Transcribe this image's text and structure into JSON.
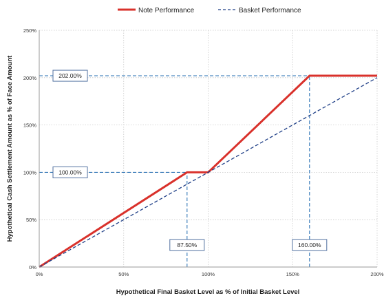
{
  "chart_data": {
    "type": "line",
    "xlabel": "Hypothetical Final Basket Level as % of Initial Basket Level",
    "ylabel": "Hypothetical Cash Settlement Amount as % of Face Amount",
    "xlim": [
      0,
      200
    ],
    "ylim": [
      0,
      250
    ],
    "x_ticks": [
      "0%",
      "50%",
      "100%",
      "150%",
      "200%"
    ],
    "y_ticks": [
      "0%",
      "50%",
      "100%",
      "150%",
      "200%",
      "250%"
    ],
    "x_tick_values": [
      0,
      50,
      100,
      150,
      200
    ],
    "y_tick_values": [
      0,
      50,
      100,
      150,
      200,
      250
    ],
    "grid": true,
    "legend_position": "top",
    "series": [
      {
        "name": "Note Performance",
        "color": "#d9312b",
        "style": "solid",
        "x": [
          0,
          87.5,
          100,
          160,
          200
        ],
        "y": [
          0,
          100,
          100,
          202,
          202
        ]
      },
      {
        "name": "Basket Performance",
        "color": "#1f3f87",
        "style": "dashed",
        "x": [
          0,
          200
        ],
        "y": [
          0,
          200
        ]
      }
    ],
    "annotations": [
      {
        "label": "202.00%",
        "axis": "y",
        "value": 202,
        "guide_to_x": 160
      },
      {
        "label": "100.00%",
        "axis": "y",
        "value": 100,
        "guide_to_x": 87.5
      },
      {
        "label": "87.50%",
        "axis": "x",
        "value": 87.5,
        "guide_to_y": 100
      },
      {
        "label": "160.00%",
        "axis": "x",
        "value": 160,
        "guide_to_y": 202
      }
    ],
    "guide_color": "#2e74b5",
    "grid_color": "#c8c8c8"
  }
}
